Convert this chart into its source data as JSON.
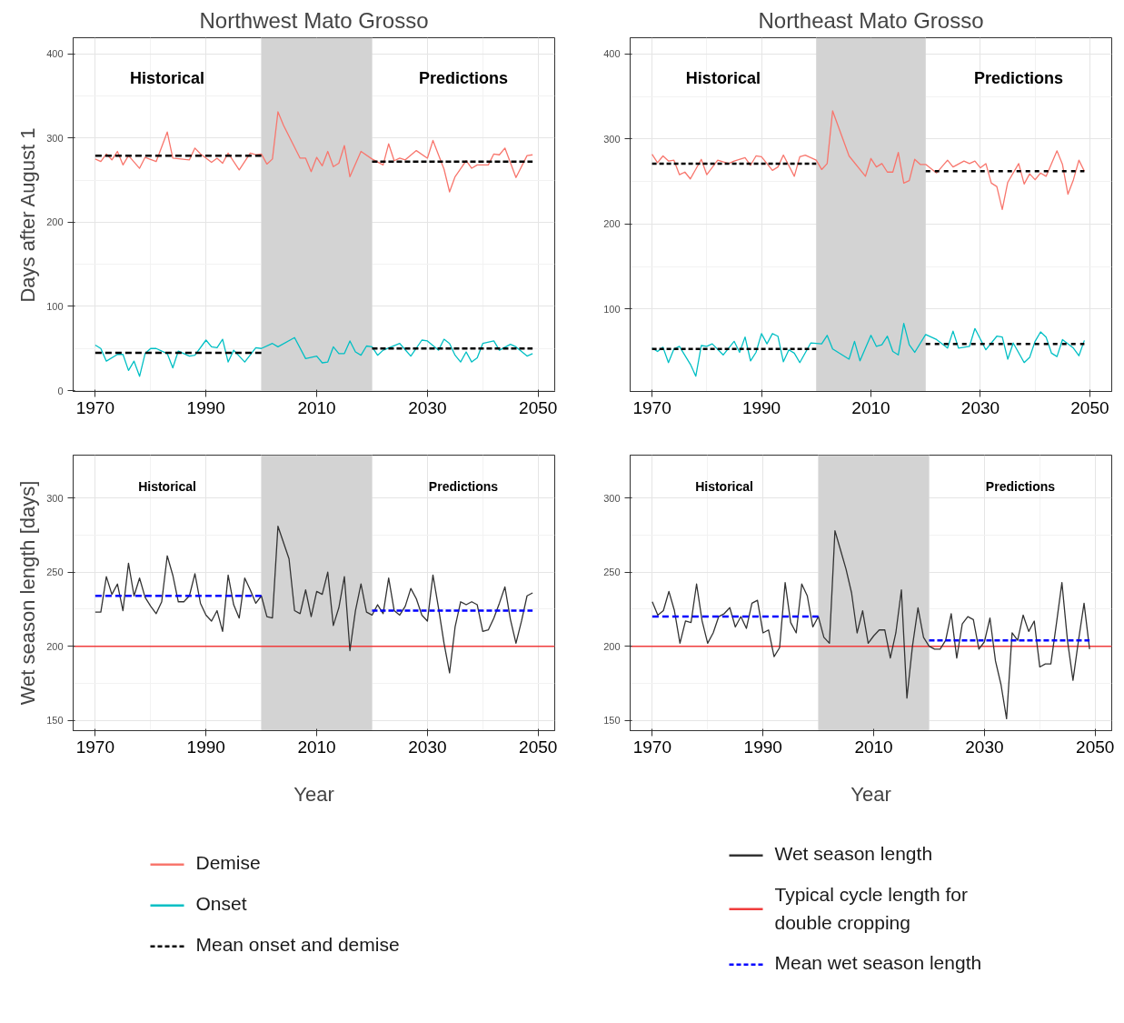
{
  "chart_data": [
    {
      "type": "line",
      "title": "Northwest Mato Grosso",
      "ylabel": "Days after August 1",
      "xlim": [
        1966,
        2053
      ],
      "ylim": [
        -1,
        419
      ],
      "xticks": [
        1970,
        1990,
        2010,
        2030,
        2050
      ],
      "yticks": [
        0,
        100,
        200,
        300,
        400
      ],
      "grid": true,
      "legend": "bottom",
      "annotations": [
        "Historical",
        "Predictions"
      ],
      "bands": [
        {
          "axis": "x",
          "from": 2000,
          "to": 2020,
          "color": "#d3d3d3"
        }
      ],
      "series": [
        {
          "name": "Demise",
          "color": "#f8766d",
          "x": [
            1970,
            1971,
            1972,
            1973,
            1974,
            1975,
            1976,
            1978,
            1979,
            1981,
            1983,
            1984,
            1987,
            1988,
            1989,
            1991,
            1992,
            1993,
            1994,
            1996,
            1998,
            1999,
            2000,
            2001,
            2002,
            2003,
            2004,
            2007,
            2008,
            2009,
            2010,
            2011,
            2012,
            2013,
            2014,
            2015,
            2016,
            2018,
            2020,
            2022,
            2023,
            2024,
            2025,
            2026,
            2028,
            2030,
            2031,
            2033,
            2034,
            2035,
            2037,
            2038,
            2039,
            2041,
            2042,
            2043,
            2044,
            2046,
            2048,
            2049
          ],
          "values": [
            275,
            272,
            281,
            274,
            284,
            268,
            279,
            264,
            277,
            272,
            307,
            276,
            274,
            288,
            281,
            271,
            276,
            270,
            282,
            262,
            282,
            280,
            281,
            269,
            275,
            331,
            315,
            276,
            276,
            260,
            277,
            267,
            284,
            266,
            270,
            291,
            254,
            284,
            275,
            268,
            293,
            273,
            276,
            274,
            285,
            276,
            297,
            263,
            236,
            254,
            273,
            264,
            268,
            268,
            281,
            280,
            288,
            253,
            279,
            280
          ]
        },
        {
          "name": "Onset",
          "color": "#00bfc4",
          "x": [
            1970,
            1971,
            1972,
            1974,
            1975,
            1976,
            1977,
            1978,
            1979,
            1980,
            1981,
            1983,
            1984,
            1985,
            1987,
            1988,
            1990,
            1991,
            1992,
            1993,
            1994,
            1995,
            1997,
            1999,
            2000,
            2002,
            2003,
            2006,
            2008,
            2010,
            2011,
            2012,
            2013,
            2014,
            2015,
            2016,
            2017,
            2018,
            2019,
            2020,
            2021,
            2022,
            2025,
            2027,
            2029,
            2030,
            2032,
            2033,
            2034,
            2035,
            2036,
            2037,
            2038,
            2039,
            2040,
            2042,
            2043,
            2045,
            2046,
            2048,
            2049
          ],
          "values": [
            54,
            50,
            35,
            43,
            43,
            24,
            35,
            17,
            44,
            50,
            50,
            44,
            27,
            47,
            41,
            42,
            60,
            52,
            51,
            61,
            34,
            48,
            34,
            51,
            50,
            56,
            52,
            63,
            38,
            41,
            33,
            34,
            52,
            44,
            44,
            59,
            46,
            42,
            53,
            52,
            42,
            48,
            56,
            41,
            60,
            59,
            48,
            61,
            56,
            42,
            34,
            46,
            34,
            39,
            56,
            59,
            48,
            55,
            52,
            41,
            44
          ]
        },
        {
          "name": "Mean onset and demise",
          "color": "#000000",
          "line_style": "dashed",
          "x": [
            1970,
            2000
          ],
          "values": [
            279,
            279
          ]
        },
        {
          "color": "#000000",
          "line_style": "dashed",
          "x": [
            2020,
            2049
          ],
          "values": [
            272,
            272
          ]
        },
        {
          "color": "#000000",
          "line_style": "dashed",
          "x": [
            1970,
            2000
          ],
          "values": [
            45,
            45
          ]
        },
        {
          "color": "#000000",
          "line_style": "dashed",
          "x": [
            2020,
            2049
          ],
          "values": [
            50,
            50
          ]
        }
      ]
    },
    {
      "type": "line",
      "title": "Northeast Mato Grosso",
      "xlim": [
        1966,
        2054
      ],
      "ylim": [
        3,
        419
      ],
      "xticks": [
        1970,
        1990,
        2010,
        2030,
        2050
      ],
      "yticks": [
        100,
        200,
        300,
        400
      ],
      "grid": true,
      "annotations": [
        "Historical",
        "Predictions"
      ],
      "bands": [
        {
          "axis": "x",
          "from": 2000,
          "to": 2020,
          "color": "#d3d3d3"
        }
      ],
      "series": [
        {
          "color": "#f8766d",
          "x": [
            1970,
            1971,
            1972,
            1973,
            1974,
            1975,
            1976,
            1977,
            1979,
            1980,
            1982,
            1984,
            1985,
            1987,
            1988,
            1989,
            1990,
            1992,
            1993,
            1994,
            1996,
            1997,
            1998,
            2000,
            2001,
            2002,
            2003,
            2006,
            2009,
            2010,
            2011,
            2012,
            2013,
            2014,
            2015,
            2016,
            2017,
            2018,
            2019,
            2020,
            2022,
            2024,
            2025,
            2027,
            2028,
            2029,
            2030,
            2031,
            2032,
            2033,
            2034,
            2035,
            2037,
            2038,
            2039,
            2040,
            2041,
            2042,
            2044,
            2045,
            2046,
            2047,
            2048,
            2049
          ],
          "values": [
            282,
            272,
            280,
            274,
            275,
            258,
            261,
            253,
            276,
            258,
            275,
            271,
            274,
            278,
            269,
            280,
            279,
            263,
            267,
            281,
            256,
            279,
            281,
            275,
            264,
            271,
            333,
            280,
            256,
            277,
            267,
            271,
            261,
            261,
            284,
            248,
            251,
            276,
            270,
            270,
            260,
            275,
            267,
            274,
            271,
            274,
            266,
            271,
            248,
            244,
            217,
            249,
            271,
            247,
            259,
            252,
            260,
            256,
            286,
            270,
            235,
            252,
            275,
            262
          ]
        },
        {
          "color": "#00bfc4",
          "x": [
            1970,
            1971,
            1972,
            1973,
            1974,
            1975,
            1977,
            1978,
            1979,
            1980,
            1981,
            1983,
            1985,
            1986,
            1987,
            1988,
            1989,
            1990,
            1991,
            1992,
            1993,
            1994,
            1995,
            1996,
            1997,
            1999,
            2001,
            2002,
            2003,
            2006,
            2007,
            2008,
            2010,
            2011,
            2012,
            2013,
            2014,
            2015,
            2016,
            2017,
            2018,
            2020,
            2022,
            2024,
            2025,
            2026,
            2028,
            2029,
            2031,
            2033,
            2034,
            2035,
            2036,
            2038,
            2039,
            2040,
            2041,
            2042,
            2043,
            2044,
            2045,
            2047,
            2048,
            2049
          ],
          "values": [
            54,
            50,
            55,
            37,
            53,
            56,
            35,
            21,
            57,
            56,
            59,
            46,
            62,
            49,
            67,
            39,
            49,
            71,
            59,
            71,
            68,
            38,
            52,
            48,
            37,
            60,
            59,
            69,
            53,
            41,
            62,
            39,
            69,
            56,
            58,
            68,
            50,
            46,
            83,
            58,
            49,
            70,
            64,
            54,
            74,
            54,
            56,
            77,
            52,
            68,
            67,
            41,
            60,
            37,
            43,
            62,
            73,
            67,
            48,
            44,
            64,
            54,
            45,
            63
          ]
        },
        {
          "color": "#000000",
          "line_style": "dashed",
          "x": [
            1970,
            2000
          ],
          "values": [
            271,
            271
          ]
        },
        {
          "color": "#000000",
          "line_style": "dashed",
          "x": [
            2020,
            2049
          ],
          "values": [
            262,
            262
          ]
        },
        {
          "color": "#000000",
          "line_style": "dashed",
          "x": [
            1970,
            2000
          ],
          "values": [
            53,
            53
          ]
        },
        {
          "color": "#000000",
          "line_style": "dashed",
          "x": [
            2020,
            2049
          ],
          "values": [
            59,
            59
          ]
        }
      ]
    },
    {
      "type": "line",
      "ylabel": "Wet season length [days]",
      "xlabel": "Year",
      "xlim": [
        1966,
        2053
      ],
      "ylim": [
        143,
        329
      ],
      "xticks": [
        1970,
        1990,
        2010,
        2030,
        2050
      ],
      "yticks": [
        150,
        200,
        250,
        300
      ],
      "grid": true,
      "annotations": [
        "Historical",
        "Predictions"
      ],
      "bands": [
        {
          "axis": "x",
          "from": 2000,
          "to": 2020,
          "color": "#d3d3d3"
        }
      ],
      "ref_lines": [
        {
          "axis": "y",
          "value": 200,
          "color": "#f03c3c"
        }
      ],
      "series": [
        {
          "color": "#333333",
          "x": [
            1970,
            1971,
            1972,
            1973,
            1974,
            1975,
            1976,
            1977,
            1978,
            1979,
            1980,
            1981,
            1982,
            1983,
            1984,
            1985,
            1986,
            1987,
            1988,
            1989,
            1990,
            1991,
            1992,
            1993,
            1994,
            1995,
            1996,
            1997,
            1998,
            1999,
            2000,
            2001,
            2002,
            2003,
            2005,
            2006,
            2007,
            2008,
            2009,
            2010,
            2011,
            2012,
            2013,
            2014,
            2015,
            2016,
            2017,
            2018,
            2019,
            2020,
            2021,
            2022,
            2023,
            2024,
            2025,
            2026,
            2027,
            2028,
            2029,
            2030,
            2031,
            2032,
            2033,
            2034,
            2035,
            2036,
            2037,
            2038,
            2039,
            2040,
            2041,
            2042,
            2043,
            2044,
            2045,
            2046,
            2047,
            2048,
            2049
          ],
          "values": [
            223,
            223,
            247,
            235,
            242,
            224,
            256,
            234,
            246,
            233,
            227,
            222,
            230,
            261,
            248,
            230,
            230,
            234,
            249,
            229,
            221,
            217,
            224,
            210,
            248,
            228,
            219,
            246,
            238,
            229,
            234,
            220,
            219,
            281,
            259,
            224,
            222,
            238,
            220,
            237,
            235,
            250,
            214,
            226,
            247,
            197,
            224,
            242,
            223,
            221,
            228,
            222,
            246,
            224,
            221,
            227,
            239,
            232,
            221,
            217,
            248,
            226,
            202,
            182,
            213,
            230,
            228,
            230,
            228,
            210,
            211,
            219,
            229,
            240,
            218,
            202,
            217,
            234,
            236
          ]
        },
        {
          "color": "#0000ff",
          "line_style": "dashed",
          "x": [
            1970,
            2000
          ],
          "values": [
            234,
            234
          ]
        },
        {
          "color": "#0000ff",
          "line_style": "dashed",
          "x": [
            2020,
            2049
          ],
          "values": [
            224,
            224
          ]
        }
      ]
    },
    {
      "type": "line",
      "xlabel": "Year",
      "xlim": [
        1966,
        2053
      ],
      "ylim": [
        143,
        329
      ],
      "xticks": [
        1970,
        1990,
        2010,
        2030,
        2050
      ],
      "yticks": [
        150,
        200,
        250,
        300
      ],
      "grid": true,
      "legend": "bottom",
      "annotations": [
        "Historical",
        "Predictions"
      ],
      "bands": [
        {
          "axis": "x",
          "from": 2000,
          "to": 2020,
          "color": "#d3d3d3"
        }
      ],
      "ref_lines": [
        {
          "axis": "y",
          "value": 200,
          "color": "#f03c3c",
          "label": "Typical cycle length for double cropping"
        }
      ],
      "series": [
        {
          "name": "Wet season length",
          "color": "#333333",
          "x": [
            1970,
            1971,
            1972,
            1973,
            1974,
            1975,
            1976,
            1977,
            1978,
            1979,
            1980,
            1981,
            1982,
            1983,
            1984,
            1985,
            1986,
            1987,
            1988,
            1989,
            1990,
            1991,
            1992,
            1993,
            1994,
            1995,
            1996,
            1997,
            1998,
            1999,
            2000,
            2001,
            2002,
            2003,
            2004,
            2005,
            2006,
            2007,
            2008,
            2009,
            2010,
            2011,
            2012,
            2013,
            2014,
            2015,
            2016,
            2017,
            2018,
            2019,
            2020,
            2021,
            2022,
            2023,
            2024,
            2025,
            2026,
            2027,
            2028,
            2029,
            2030,
            2031,
            2032,
            2033,
            2034,
            2035,
            2036,
            2037,
            2038,
            2039,
            2040,
            2041,
            2042,
            2043,
            2044,
            2045,
            2046,
            2047,
            2048,
            2049
          ],
          "values": [
            230,
            221,
            224,
            237,
            224,
            202,
            217,
            216,
            242,
            217,
            202,
            209,
            220,
            222,
            226,
            213,
            220,
            212,
            229,
            231,
            209,
            211,
            193,
            199,
            243,
            216,
            209,
            242,
            234,
            213,
            220,
            206,
            202,
            278,
            265,
            252,
            236,
            209,
            224,
            202,
            207,
            211,
            211,
            192,
            209,
            238,
            165,
            200,
            226,
            206,
            200,
            198,
            198,
            204,
            222,
            192,
            215,
            220,
            218,
            198,
            203,
            219,
            190,
            174,
            151,
            209,
            204,
            221,
            210,
            217,
            186,
            188,
            188,
            215,
            243,
            204,
            177,
            204,
            229,
            198
          ]
        },
        {
          "name": "Mean wet season length",
          "color": "#0000ff",
          "line_style": "dashed",
          "x": [
            1970,
            2000
          ],
          "values": [
            220,
            220
          ]
        },
        {
          "color": "#0000ff",
          "line_style": "dashed",
          "x": [
            2020,
            2049
          ],
          "values": [
            204,
            204
          ]
        }
      ]
    }
  ]
}
